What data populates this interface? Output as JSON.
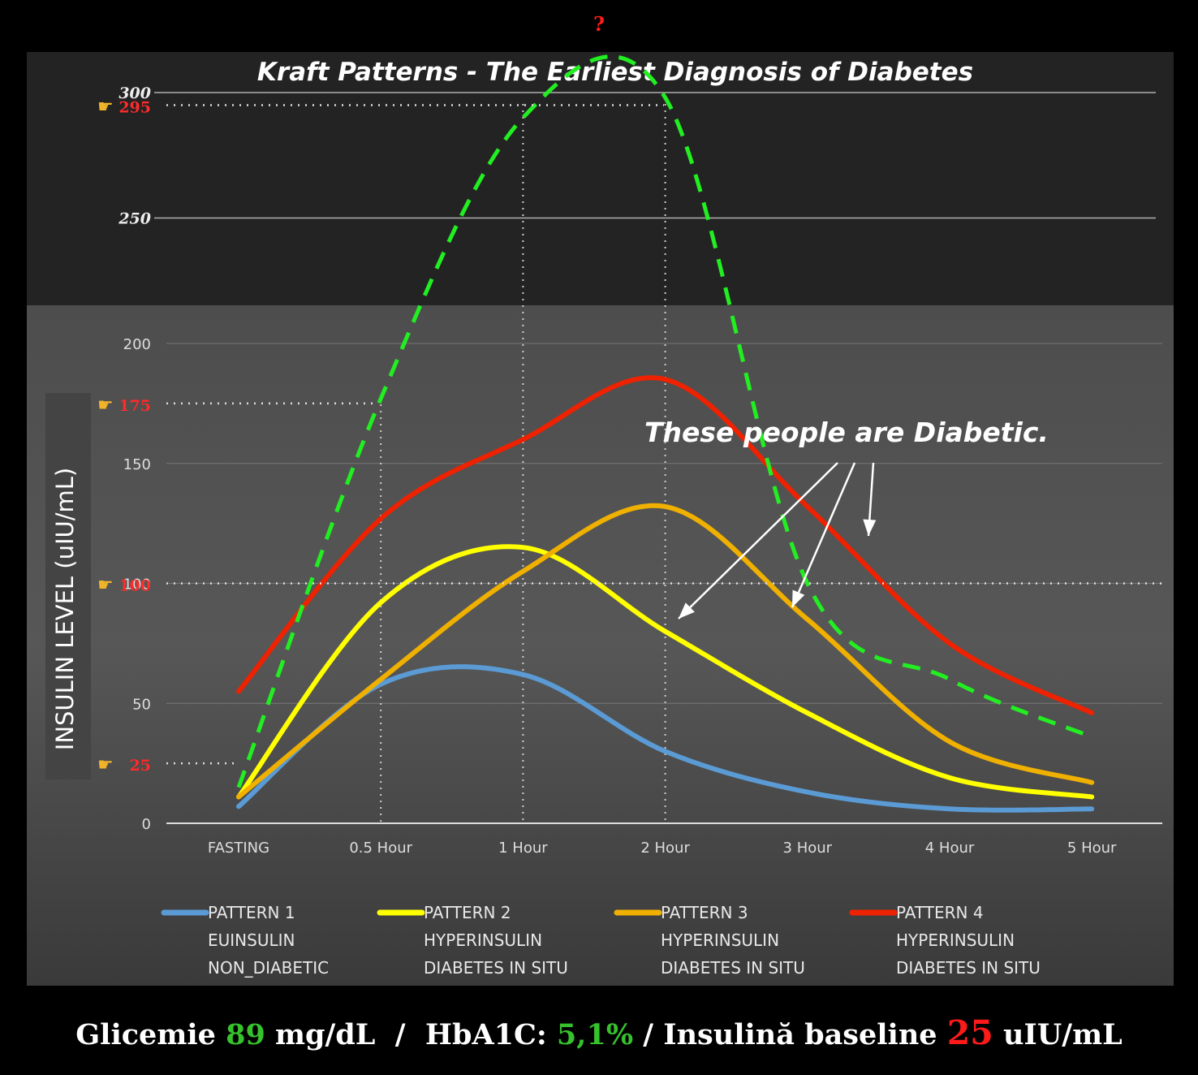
{
  "chart_data": {
    "type": "line",
    "title": "Kraft Patterns - The Earliest Diagnosis of Diabetes",
    "ylabel": "INSULIN LEVEL (uIU/mL)",
    "categories": [
      "FASTING",
      "0.5 Hour",
      "1 Hour",
      "2 Hour",
      "3 Hour",
      "4 Hour",
      "5 Hour"
    ],
    "y_ticks": [
      0,
      50,
      100,
      150,
      200,
      250,
      300
    ],
    "ylim": [
      0,
      300
    ],
    "series": [
      {
        "name": "PATTERN 1",
        "line2": "EUINSULIN",
        "line3": "NON_DIABETIC",
        "color": "#5b9bd5",
        "values": [
          7,
          58,
          62,
          30,
          13,
          6,
          6
        ]
      },
      {
        "name": "PATTERN 2",
        "line2": "HYPERINSULIN",
        "line3": "DIABETES IN SITU",
        "color": "#ffff00",
        "values": [
          11,
          92,
          115,
          80,
          46,
          19,
          11
        ]
      },
      {
        "name": "PATTERN 3",
        "line2": "HYPERINSULIN",
        "line3": "DIABETES IN SITU",
        "color": "#f0b000",
        "values": [
          11,
          60,
          105,
          132,
          85,
          34,
          17
        ]
      },
      {
        "name": "PATTERN 4",
        "line2": "HYPERINSULIN",
        "line3": "DIABETES IN SITU",
        "color": "#ee2200",
        "values": [
          55,
          127,
          160,
          185,
          132,
          75,
          46
        ]
      }
    ],
    "overlay_series": {
      "name": "dashed estimate",
      "color": "#22ee22",
      "values": [
        15,
        177,
        290,
        298,
        100,
        60,
        36
      ]
    },
    "markers": [
      {
        "label": "295",
        "value": 295
      },
      {
        "label": "175",
        "value": 175
      },
      {
        "label": "100",
        "value": 100
      },
      {
        "label": "25",
        "value": 25
      }
    ],
    "peak_mark": "?",
    "annotation": "These people are Diabetic."
  },
  "footer": {
    "p1": "Glicemie ",
    "glucose": "89",
    "p2": " mg/dL  /  HbA1C: ",
    "hba1c": "5,1%",
    "p3": " / Insulină baseline ",
    "insulin": "25",
    "p4": " uIU/mL"
  }
}
